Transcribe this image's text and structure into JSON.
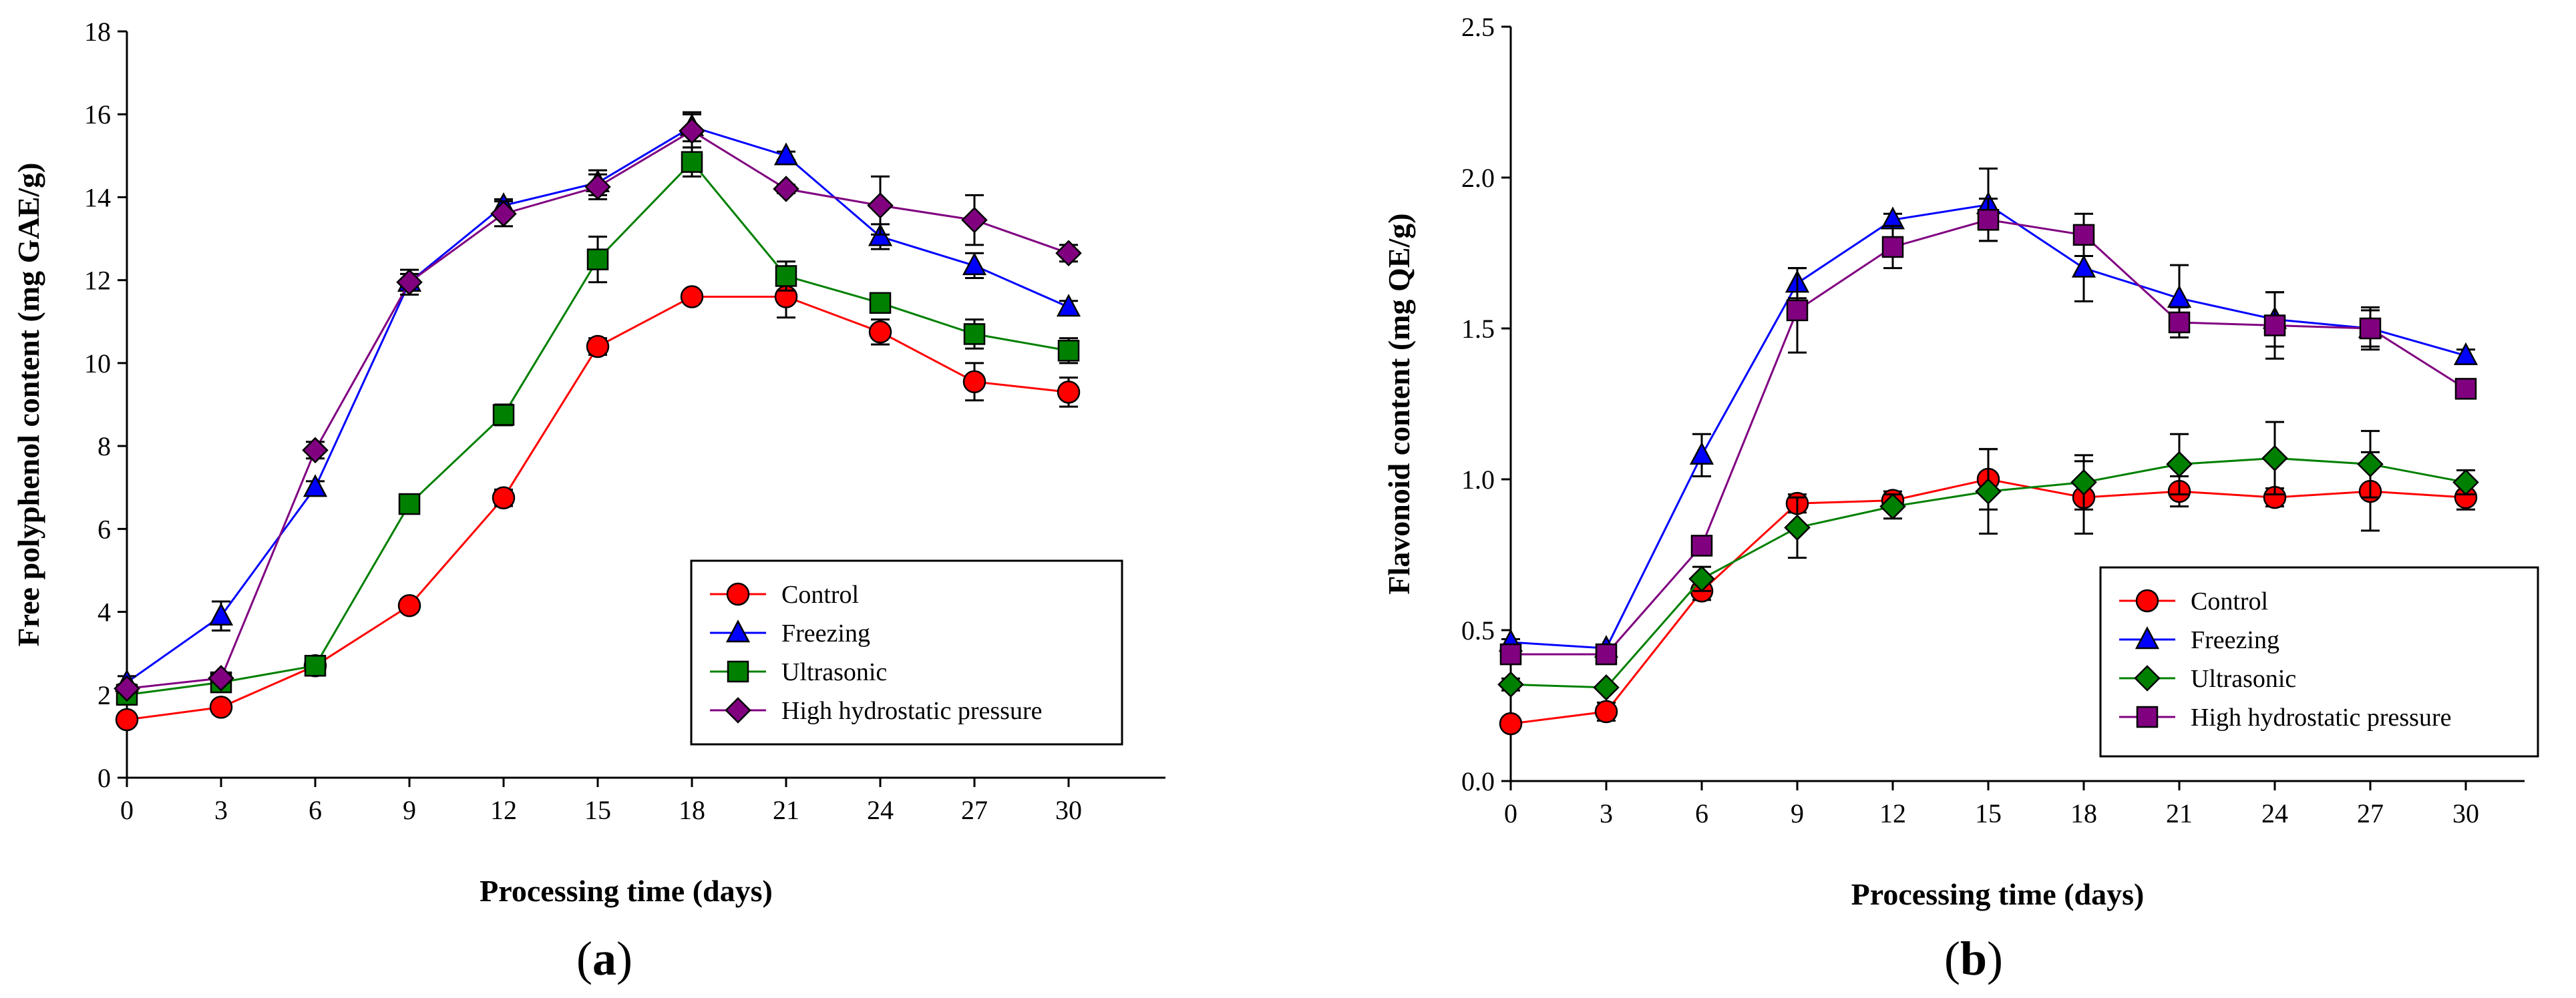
{
  "chart_data": [
    {
      "type": "line",
      "panel_label": {
        "open": "(",
        "letter": "a",
        "close": ")"
      },
      "title": "",
      "xlabel": "Processing time (days)",
      "ylabel": "Free polyphenol content (mg GAE/g)",
      "x": [
        0,
        3,
        6,
        9,
        12,
        15,
        18,
        21,
        24,
        27,
        30
      ],
      "xticks": [
        0,
        3,
        6,
        9,
        12,
        15,
        18,
        21,
        24,
        27,
        30
      ],
      "yticks": [
        0,
        2,
        4,
        6,
        8,
        10,
        12,
        14,
        16,
        18
      ],
      "ylim": [
        0,
        18
      ],
      "legend_position": "lower-right",
      "series": [
        {
          "name": "Control",
          "color": "#ff0000",
          "marker": "circle",
          "values": [
            1.4,
            1.7,
            2.7,
            4.15,
            6.75,
            10.4,
            11.6,
            11.6,
            10.75,
            9.55,
            9.3
          ],
          "errors": [
            0.1,
            0.15,
            0.1,
            0.15,
            0.2,
            0.2,
            0.1,
            0.5,
            0.3,
            0.45,
            0.35
          ]
        },
        {
          "name": "Freezing",
          "color": "#0000ff",
          "marker": "triangle",
          "values": [
            2.3,
            3.9,
            7.0,
            11.95,
            13.8,
            14.35,
            15.7,
            15.0,
            13.05,
            12.35,
            11.35
          ],
          "errors": [
            0.15,
            0.35,
            0.15,
            0.2,
            0.15,
            0.3,
            0.35,
            0.1,
            0.3,
            0.3,
            0.15
          ]
        },
        {
          "name": "Ultrasonic",
          "color": "#008000",
          "marker": "square",
          "values": [
            2.0,
            2.3,
            2.7,
            6.6,
            8.75,
            12.5,
            14.85,
            12.1,
            11.45,
            10.7,
            10.3
          ],
          "errors": [
            0.1,
            0.1,
            0.1,
            0.15,
            0.25,
            0.55,
            0.35,
            0.35,
            0.2,
            0.35,
            0.3
          ]
        },
        {
          "name": "High hydrostatic pressure",
          "color": "#800080",
          "marker": "diamond",
          "values": [
            2.15,
            2.4,
            7.9,
            11.95,
            13.6,
            14.25,
            15.6,
            14.2,
            13.8,
            13.45,
            12.65
          ],
          "errors": [
            0.1,
            0.1,
            0.2,
            0.3,
            0.3,
            0.3,
            0.4,
            0.1,
            0.7,
            0.6,
            0.2
          ]
        }
      ]
    },
    {
      "type": "line",
      "panel_label": {
        "open": "(",
        "letter": "b",
        "close": ")"
      },
      "title": "",
      "xlabel": "Processing time (days)",
      "ylabel": "Flavonoid content (mg QE/g)",
      "x": [
        0,
        3,
        6,
        9,
        12,
        15,
        18,
        21,
        24,
        27,
        30
      ],
      "xticks": [
        0,
        3,
        6,
        9,
        12,
        15,
        18,
        21,
        24,
        27,
        30
      ],
      "yticks": [
        "0.0",
        "0.5",
        "1.0",
        "1.5",
        "2.0",
        "2.5"
      ],
      "ylim": [
        0,
        2.5
      ],
      "legend_position": "lower-right",
      "series": [
        {
          "name": "Control",
          "color": "#ff0000",
          "marker": "circle",
          "values": [
            0.19,
            0.23,
            0.63,
            0.92,
            0.93,
            1.0,
            0.94,
            0.96,
            0.94,
            0.96,
            0.94
          ],
          "errors": [
            0.01,
            0.03,
            0.03,
            0.03,
            0.03,
            0.1,
            0.12,
            0.05,
            0.03,
            0.13,
            0.04
          ]
        },
        {
          "name": "Freezing",
          "color": "#0000ff",
          "marker": "triangle",
          "values": [
            0.46,
            0.44,
            1.08,
            1.65,
            1.86,
            1.91,
            1.7,
            1.6,
            1.53,
            1.5,
            1.41
          ],
          "errors": [
            0.01,
            0.01,
            0.07,
            0.05,
            0.02,
            0.12,
            0.11,
            0.11,
            0.09,
            0.07,
            0.02
          ]
        },
        {
          "name": "Ultrasonic",
          "color": "#008000",
          "marker": "diamond",
          "values": [
            0.32,
            0.31,
            0.67,
            0.84,
            0.91,
            0.96,
            0.99,
            1.05,
            1.07,
            1.05,
            0.99
          ],
          "errors": [
            0.02,
            0.01,
            0.04,
            0.1,
            0.04,
            0.14,
            0.09,
            0.1,
            0.12,
            0.11,
            0.04
          ]
        },
        {
          "name": "High hydrostatic pressure",
          "color": "#800080",
          "marker": "square",
          "values": [
            0.42,
            0.42,
            0.78,
            1.56,
            1.77,
            1.86,
            1.81,
            1.52,
            1.51,
            1.5,
            1.3
          ],
          "errors": [
            0.01,
            0.01,
            0.02,
            0.14,
            0.07,
            0.07,
            0.07,
            0.05,
            0.11,
            0.06,
            0.02
          ]
        }
      ]
    }
  ]
}
